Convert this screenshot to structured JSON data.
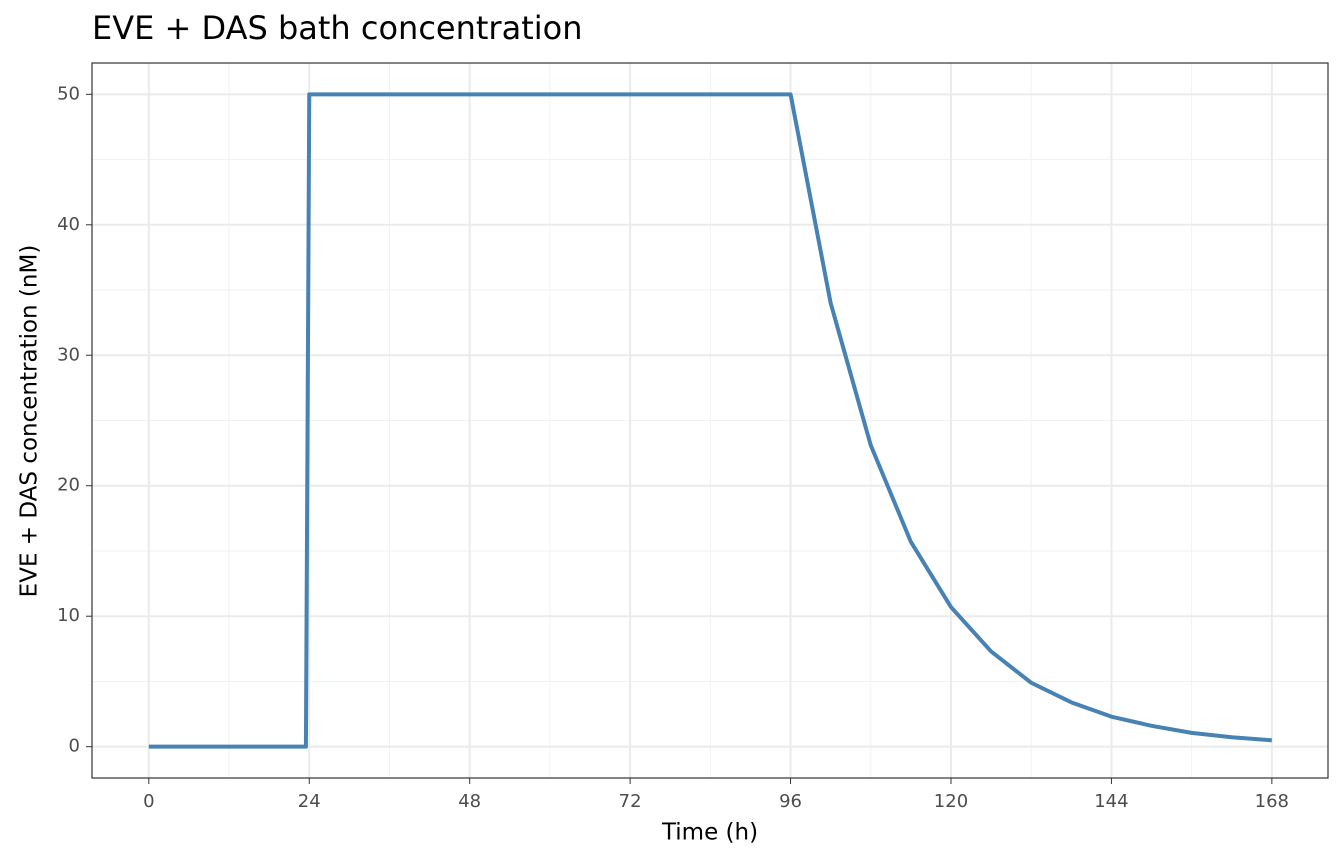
{
  "chart_data": {
    "type": "line",
    "title": "EVE + DAS bath concentration",
    "x_label": "Time (h)",
    "y_label": "EVE + DAS concentration (nM)",
    "x": [
      0,
      23.5,
      24,
      96,
      102,
      108,
      114,
      120,
      126,
      132,
      138,
      144,
      150,
      156,
      162,
      168
    ],
    "series": [
      {
        "name": "EVE + DAS",
        "color": "#4682b4",
        "values": [
          0,
          0,
          50,
          50,
          34,
          23.1,
          15.7,
          10.7,
          7.3,
          4.9,
          3.4,
          2.3,
          1.6,
          1.06,
          0.72,
          0.49
        ]
      }
    ],
    "xlim": [
      -8.5,
      176.4
    ],
    "ylim": [
      -2.4,
      52.4
    ],
    "xticks": [
      0,
      24,
      48,
      72,
      96,
      120,
      144,
      168
    ],
    "yticks": [
      0,
      10,
      20,
      30,
      40,
      50
    ],
    "grid": true,
    "minor_grid": true
  }
}
